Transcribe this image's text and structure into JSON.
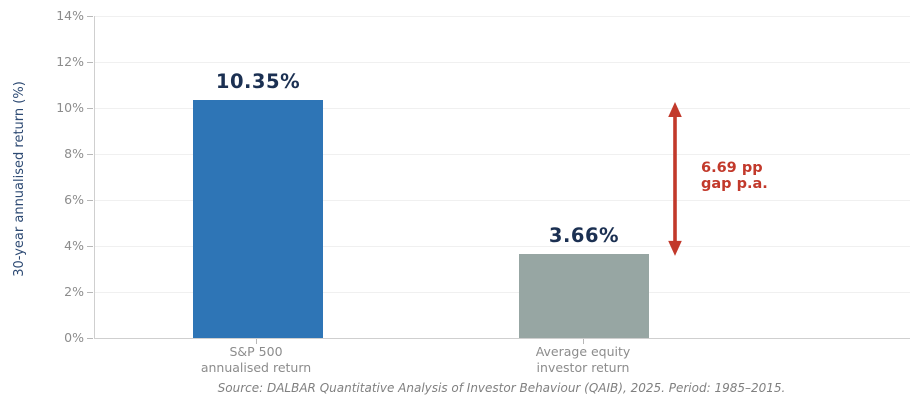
{
  "chart_data": {
    "type": "bar",
    "title": "",
    "xlabel": "",
    "ylabel": "30-year annualised return (%)",
    "ylim": [
      0,
      14
    ],
    "yticks": [
      0,
      2,
      4,
      6,
      8,
      10,
      12,
      14
    ],
    "ytick_labels": [
      "0%",
      "2%",
      "4%",
      "6%",
      "8%",
      "10%",
      "12%",
      "14%"
    ],
    "grid": true,
    "legend": "none",
    "categories": [
      {
        "line1": "S&P 500",
        "line2": "annualised return"
      },
      {
        "line1": "Average equity",
        "line2": "investor return"
      }
    ],
    "values": [
      10.35,
      3.66
    ],
    "value_labels": [
      "10.35%",
      "3.66%"
    ],
    "bar_colors": [
      "#2e75b6",
      "#97a6a3"
    ],
    "annotation": {
      "line1": "6.69 pp",
      "line2": "gap p.a.",
      "arrow_top_value": 10.35,
      "arrow_bottom_value": 3.66
    },
    "source_note": "Source: DALBAR Quantitative Analysis of Investor Behaviour (QAIB), 2025. Period: 1985–2015."
  },
  "colors": {
    "bar_sp500": "#2e75b6",
    "bar_investor": "#97a6a3",
    "value_label_navy": "#1b3052",
    "axis_title_navy": "#2d4a73",
    "tick_label_gray": "#8c8c8c",
    "annotation_red": "#c2392b",
    "gridline": "#f0f0f0",
    "spine": "#cfcfcf"
  }
}
